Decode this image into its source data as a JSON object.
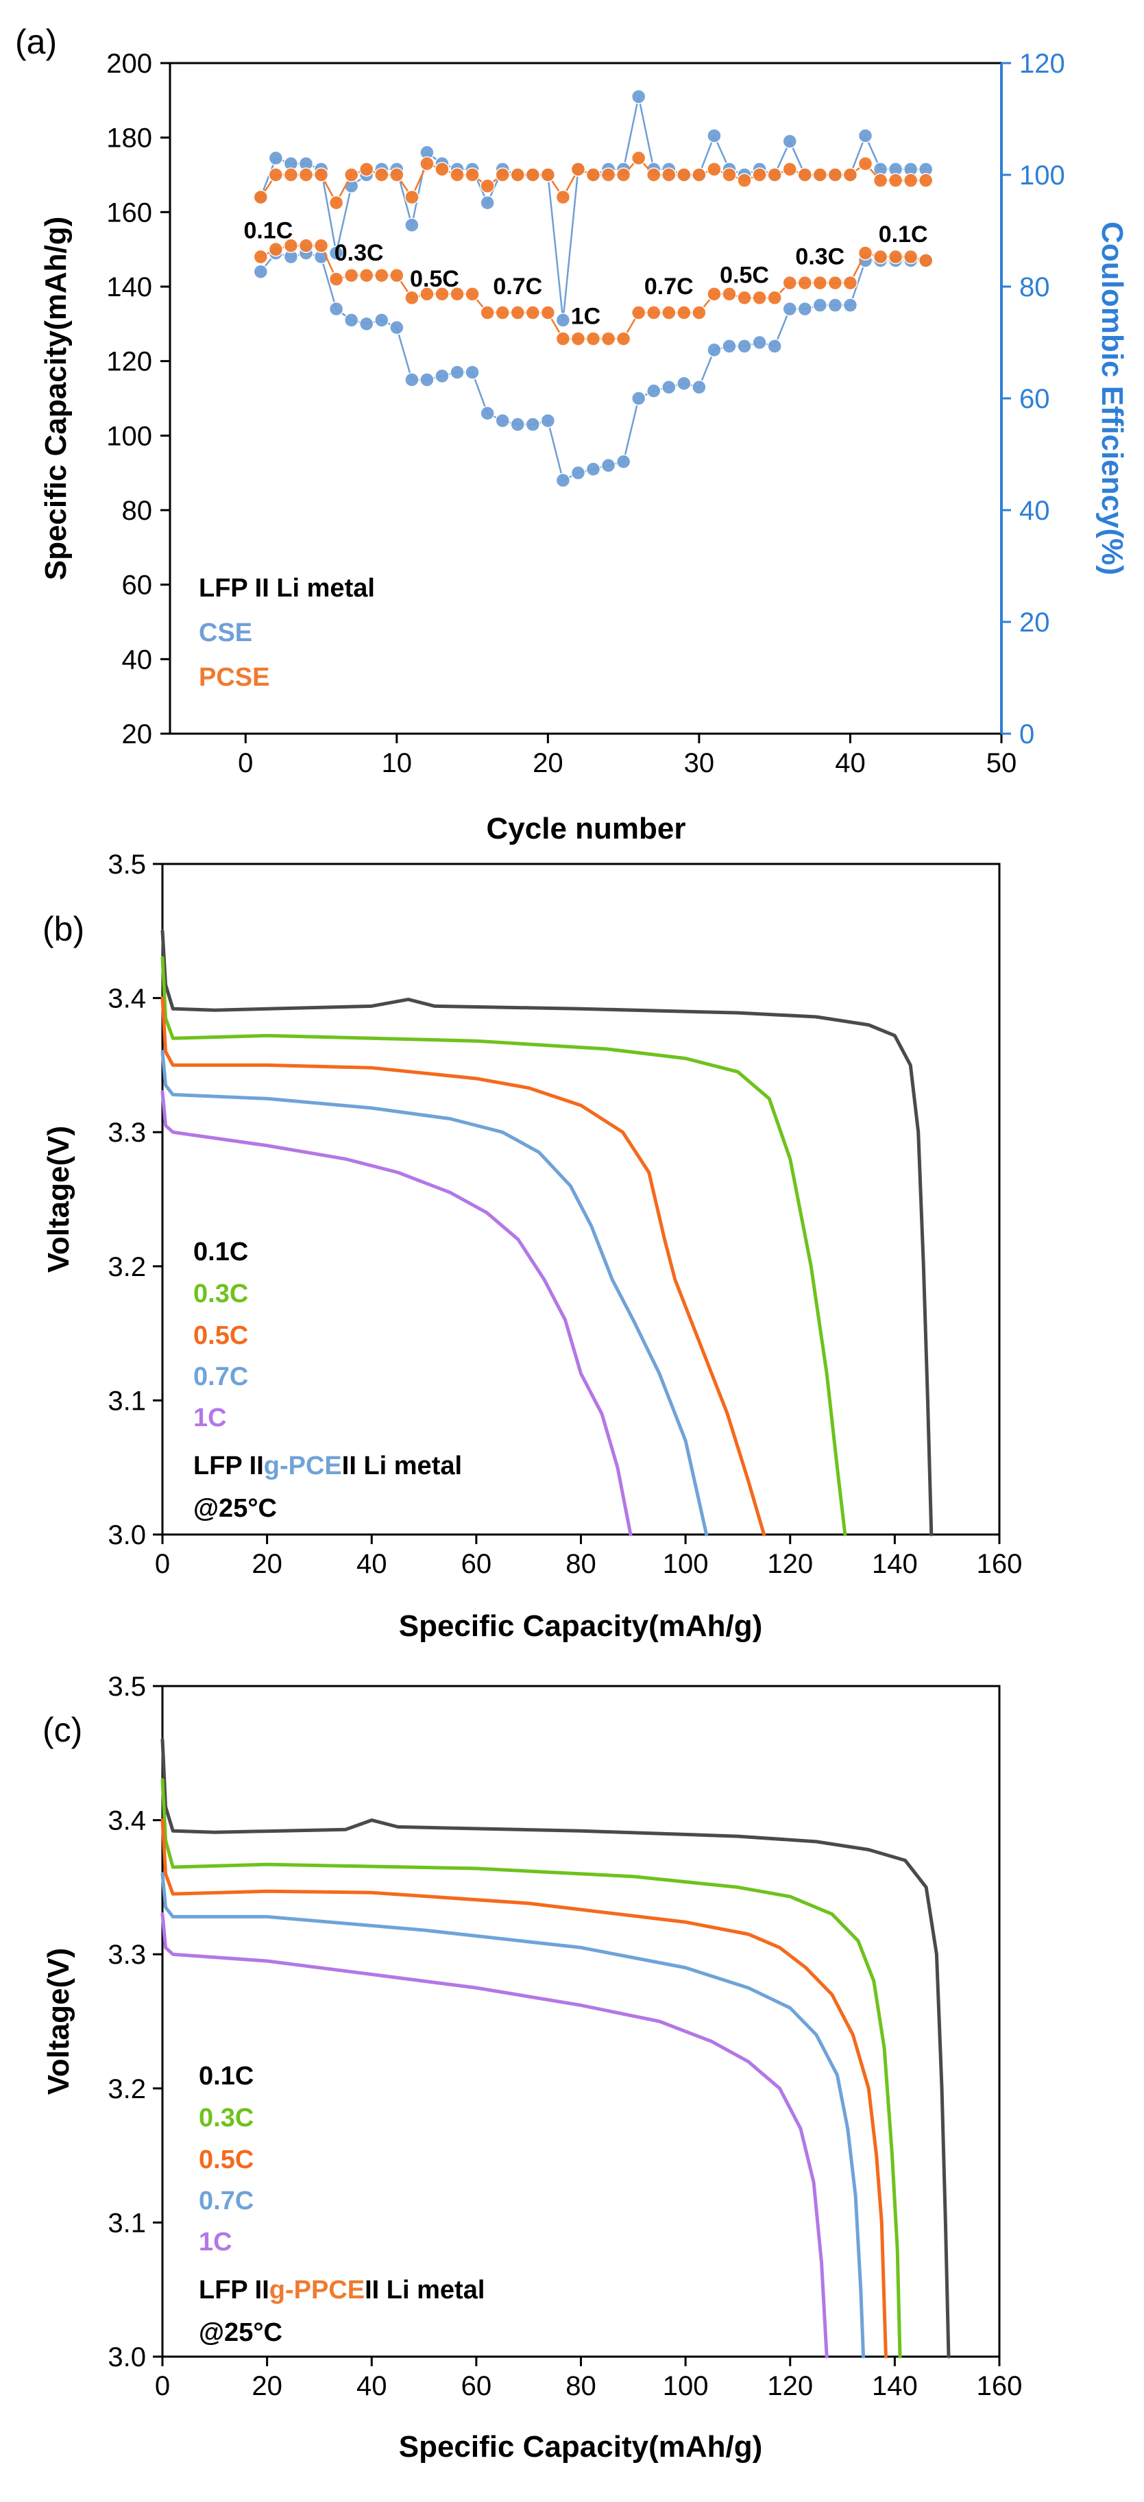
{
  "colors": {
    "cse": "#6f9fd6",
    "pcse": "#f07a2e",
    "right_axis": "#2f7fd6",
    "c01": "#4a4a4a",
    "c03": "#6ec21d",
    "c05": "#f46a1c",
    "c07": "#6fa3d8",
    "c1": "#b377e6"
  },
  "chart_data": [
    {
      "type": "scatter",
      "panel": "(a)",
      "title": "",
      "xlabel": "Cycle number",
      "ylabel": "Specific Capacity(mAh/g)",
      "y2label": "Coulombic Efficiency(%)",
      "xlim": [
        -5,
        50
      ],
      "ylim": [
        20,
        200
      ],
      "y2lim": [
        0,
        120
      ],
      "xticks": [
        "0",
        "10",
        "20",
        "30",
        "40",
        "50"
      ],
      "yticks": [
        "20",
        "40",
        "60",
        "80",
        "100",
        "120",
        "140",
        "160",
        "180",
        "200"
      ],
      "y2ticks": [
        "0",
        "20",
        "40",
        "60",
        "80",
        "100",
        "120"
      ],
      "legend": [
        "LFP II Li metal",
        "CSE",
        "PCSE"
      ],
      "rate_labels": [
        {
          "text": "0.1C",
          "x": 1.5,
          "y": 153
        },
        {
          "text": "0.3C",
          "x": 7.5,
          "y": 147
        },
        {
          "text": "0.5C",
          "x": 12.5,
          "y": 140
        },
        {
          "text": "0.7C",
          "x": 18,
          "y": 138
        },
        {
          "text": "1C",
          "x": 22.5,
          "y": 130
        },
        {
          "text": "0.7C",
          "x": 28,
          "y": 138
        },
        {
          "text": "0.5C",
          "x": 33,
          "y": 141
        },
        {
          "text": "0.3C",
          "x": 38,
          "y": 146
        },
        {
          "text": "0.1C",
          "x": 43.5,
          "y": 152
        }
      ],
      "x": [
        1,
        2,
        3,
        4,
        5,
        6,
        7,
        8,
        9,
        10,
        11,
        12,
        13,
        14,
        15,
        16,
        17,
        18,
        19,
        20,
        21,
        22,
        23,
        24,
        25,
        26,
        27,
        28,
        29,
        30,
        31,
        32,
        33,
        34,
        35,
        36,
        37,
        38,
        39,
        40,
        41,
        42,
        43,
        44,
        45
      ],
      "series": [
        {
          "name": "CSE capacity",
          "axis": "left",
          "values": [
            144,
            149,
            148,
            149,
            148,
            134,
            131,
            130,
            131,
            129,
            115,
            115,
            116,
            117,
            117,
            106,
            104,
            103,
            103,
            104,
            88,
            90,
            91,
            92,
            93,
            110,
            112,
            113,
            114,
            113,
            123,
            124,
            124,
            125,
            124,
            134,
            134,
            135,
            135,
            135,
            147,
            147,
            147,
            147,
            147
          ]
        },
        {
          "name": "PCSE capacity",
          "axis": "left",
          "values": [
            148,
            150,
            151,
            151,
            151,
            142,
            143,
            143,
            143,
            143,
            137,
            138,
            138,
            138,
            138,
            133,
            133,
            133,
            133,
            133,
            126,
            126,
            126,
            126,
            126,
            133,
            133,
            133,
            133,
            133,
            138,
            138,
            137,
            137,
            137,
            141,
            141,
            141,
            141,
            141,
            149,
            148,
            148,
            148,
            147
          ]
        },
        {
          "name": "CSE efficiency",
          "axis": "right",
          "values": [
            96,
            103,
            102,
            102,
            101,
            86,
            98,
            100,
            101,
            101,
            91,
            104,
            102,
            101,
            101,
            95,
            101,
            100,
            100,
            100,
            74,
            101,
            100,
            101,
            101,
            114,
            101,
            101,
            100,
            100,
            107,
            101,
            100,
            101,
            100,
            106,
            100,
            100,
            100,
            100,
            107,
            101,
            101,
            101,
            101
          ]
        },
        {
          "name": "PCSE efficiency",
          "axis": "right",
          "values": [
            96,
            100,
            100,
            100,
            100,
            95,
            100,
            101,
            100,
            100,
            96,
            102,
            101,
            100,
            100,
            98,
            100,
            100,
            100,
            100,
            96,
            101,
            100,
            100,
            100,
            103,
            100,
            100,
            100,
            100,
            101,
            100,
            99,
            100,
            100,
            101,
            100,
            100,
            100,
            100,
            102,
            99,
            99,
            99,
            99
          ]
        }
      ]
    },
    {
      "type": "line",
      "panel": "(b)",
      "xlabel": "Specific Capacity(mAh/g)",
      "ylabel": "Voltage(V)",
      "xlim": [
        0,
        160
      ],
      "ylim": [
        3.0,
        3.5
      ],
      "xticks": [
        "0",
        "20",
        "40",
        "60",
        "80",
        "100",
        "120",
        "140",
        "160"
      ],
      "yticks": [
        "3.0",
        "3.1",
        "3.2",
        "3.3",
        "3.4",
        "3.5"
      ],
      "legend": [
        "0.1C",
        "0.3C",
        "0.5C",
        "0.7C",
        "1C"
      ],
      "annotation_prefix": "LFP II",
      "annotation_highlight": "g-PCE",
      "annotation_suffix": "II Li metal",
      "annotation_temp": "@25°C",
      "series": [
        {
          "name": "0.1C",
          "points": [
            [
              0,
              3.45
            ],
            [
              0.6,
              3.41
            ],
            [
              2,
              3.392
            ],
            [
              10,
              3.391
            ],
            [
              40,
              3.394
            ],
            [
              47,
              3.399
            ],
            [
              52,
              3.394
            ],
            [
              80,
              3.392
            ],
            [
              110,
              3.389
            ],
            [
              125,
              3.386
            ],
            [
              135,
              3.38
            ],
            [
              140,
              3.372
            ],
            [
              143,
              3.35
            ],
            [
              144.5,
              3.3
            ],
            [
              145.5,
              3.2
            ],
            [
              146.3,
              3.1
            ],
            [
              147,
              3.0
            ]
          ]
        },
        {
          "name": "0.3C",
          "points": [
            [
              0,
              3.43
            ],
            [
              0.6,
              3.385
            ],
            [
              2,
              3.37
            ],
            [
              20,
              3.372
            ],
            [
              60,
              3.368
            ],
            [
              85,
              3.362
            ],
            [
              100,
              3.355
            ],
            [
              110,
              3.345
            ],
            [
              116,
              3.325
            ],
            [
              120,
              3.28
            ],
            [
              124,
              3.2
            ],
            [
              127,
              3.12
            ],
            [
              129,
              3.05
            ],
            [
              130.5,
              3.0
            ]
          ]
        },
        {
          "name": "0.5C",
          "points": [
            [
              0,
              3.4
            ],
            [
              0.6,
              3.36
            ],
            [
              2,
              3.35
            ],
            [
              20,
              3.35
            ],
            [
              40,
              3.348
            ],
            [
              60,
              3.34
            ],
            [
              70,
              3.333
            ],
            [
              80,
              3.32
            ],
            [
              88,
              3.3
            ],
            [
              93,
              3.27
            ],
            [
              96,
              3.22
            ],
            [
              98,
              3.19
            ],
            [
              103,
              3.14
            ],
            [
              108,
              3.09
            ],
            [
              112,
              3.04
            ],
            [
              115,
              3.0
            ]
          ]
        },
        {
          "name": "0.7C",
          "points": [
            [
              0,
              3.36
            ],
            [
              0.6,
              3.335
            ],
            [
              2,
              3.328
            ],
            [
              20,
              3.325
            ],
            [
              40,
              3.318
            ],
            [
              55,
              3.31
            ],
            [
              65,
              3.3
            ],
            [
              72,
              3.285
            ],
            [
              78,
              3.26
            ],
            [
              82,
              3.23
            ],
            [
              86,
              3.19
            ],
            [
              90,
              3.16
            ],
            [
              95,
              3.12
            ],
            [
              100,
              3.07
            ],
            [
              104,
              3.0
            ]
          ]
        },
        {
          "name": "1C",
          "points": [
            [
              0,
              3.33
            ],
            [
              0.6,
              3.305
            ],
            [
              2,
              3.3
            ],
            [
              20,
              3.29
            ],
            [
              35,
              3.28
            ],
            [
              45,
              3.27
            ],
            [
              55,
              3.255
            ],
            [
              62,
              3.24
            ],
            [
              68,
              3.22
            ],
            [
              73,
              3.19
            ],
            [
              77,
              3.16
            ],
            [
              80,
              3.12
            ],
            [
              84,
              3.09
            ],
            [
              87,
              3.05
            ],
            [
              89.5,
              3.0
            ]
          ]
        }
      ]
    },
    {
      "type": "line",
      "panel": "(c)",
      "xlabel": "Specific Capacity(mAh/g)",
      "ylabel": "Voltage(V)",
      "xlim": [
        0,
        160
      ],
      "ylim": [
        3.0,
        3.5
      ],
      "xticks": [
        "0",
        "20",
        "40",
        "60",
        "80",
        "100",
        "120",
        "140",
        "160"
      ],
      "yticks": [
        "3.0",
        "3.1",
        "3.2",
        "3.3",
        "3.4",
        "3.5"
      ],
      "legend": [
        "0.1C",
        "0.3C",
        "0.5C",
        "0.7C",
        "1C"
      ],
      "annotation_prefix": "LFP II",
      "annotation_highlight": "g-PPCE",
      "annotation_suffix": "II Li metal",
      "annotation_temp": "@25°C",
      "series": [
        {
          "name": "0.1C",
          "points": [
            [
              0,
              3.46
            ],
            [
              0.6,
              3.41
            ],
            [
              2,
              3.392
            ],
            [
              10,
              3.391
            ],
            [
              35,
              3.393
            ],
            [
              40,
              3.4
            ],
            [
              45,
              3.395
            ],
            [
              80,
              3.392
            ],
            [
              110,
              3.388
            ],
            [
              125,
              3.384
            ],
            [
              135,
              3.378
            ],
            [
              142,
              3.37
            ],
            [
              146,
              3.35
            ],
            [
              148,
              3.3
            ],
            [
              149,
              3.2
            ],
            [
              149.7,
              3.1
            ],
            [
              150.3,
              3.0
            ]
          ]
        },
        {
          "name": "0.3C",
          "points": [
            [
              0,
              3.43
            ],
            [
              0.6,
              3.385
            ],
            [
              2,
              3.365
            ],
            [
              20,
              3.367
            ],
            [
              60,
              3.364
            ],
            [
              90,
              3.358
            ],
            [
              110,
              3.35
            ],
            [
              120,
              3.343
            ],
            [
              128,
              3.33
            ],
            [
              133,
              3.31
            ],
            [
              136,
              3.28
            ],
            [
              138,
              3.23
            ],
            [
              139.5,
              3.15
            ],
            [
              140.5,
              3.08
            ],
            [
              141,
              3.0
            ]
          ]
        },
        {
          "name": "0.5C",
          "points": [
            [
              0,
              3.4
            ],
            [
              0.6,
              3.36
            ],
            [
              2,
              3.345
            ],
            [
              20,
              3.347
            ],
            [
              40,
              3.346
            ],
            [
              70,
              3.338
            ],
            [
              100,
              3.324
            ],
            [
              112,
              3.315
            ],
            [
              118,
              3.305
            ],
            [
              123,
              3.29
            ],
            [
              128,
              3.27
            ],
            [
              132,
              3.24
            ],
            [
              135,
              3.2
            ],
            [
              136.5,
              3.15
            ],
            [
              137.5,
              3.1
            ],
            [
              138.3,
              3.0
            ]
          ]
        },
        {
          "name": "0.7C",
          "points": [
            [
              0,
              3.36
            ],
            [
              0.6,
              3.335
            ],
            [
              2,
              3.328
            ],
            [
              20,
              3.328
            ],
            [
              50,
              3.318
            ],
            [
              80,
              3.305
            ],
            [
              100,
              3.29
            ],
            [
              112,
              3.275
            ],
            [
              120,
              3.26
            ],
            [
              125,
              3.24
            ],
            [
              129,
              3.21
            ],
            [
              131,
              3.17
            ],
            [
              132.5,
              3.12
            ],
            [
              133.5,
              3.05
            ],
            [
              134,
              3.0
            ]
          ]
        },
        {
          "name": "1C",
          "points": [
            [
              0,
              3.33
            ],
            [
              0.6,
              3.305
            ],
            [
              2,
              3.3
            ],
            [
              20,
              3.295
            ],
            [
              40,
              3.285
            ],
            [
              60,
              3.275
            ],
            [
              80,
              3.262
            ],
            [
              95,
              3.25
            ],
            [
              105,
              3.235
            ],
            [
              112,
              3.22
            ],
            [
              118,
              3.2
            ],
            [
              122,
              3.17
            ],
            [
              124.5,
              3.13
            ],
            [
              126,
              3.07
            ],
            [
              127,
              3.0
            ]
          ]
        }
      ]
    }
  ]
}
